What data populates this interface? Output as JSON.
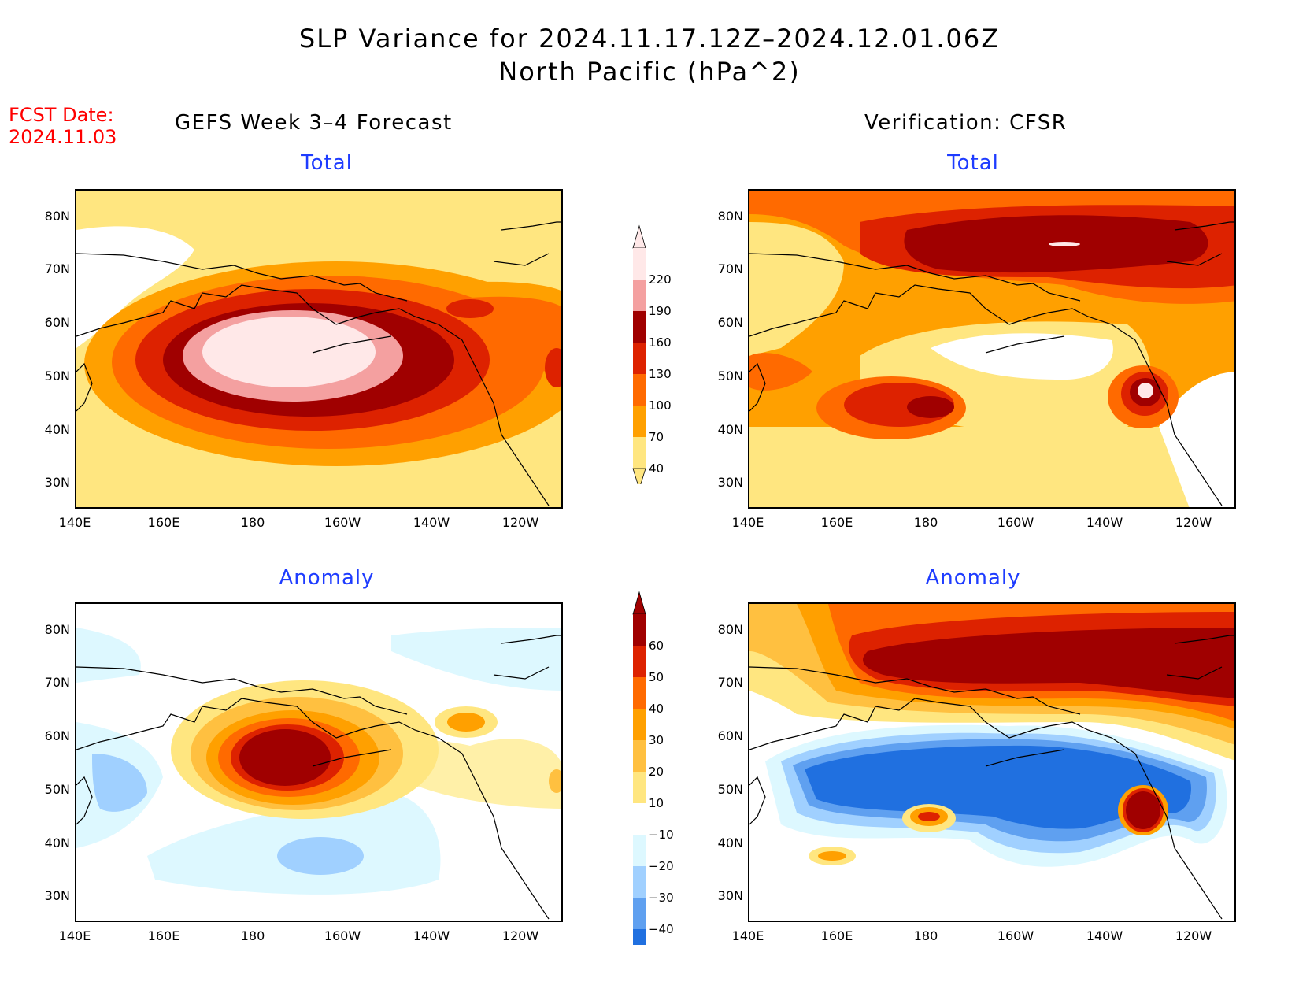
{
  "title": {
    "line1": "SLP Variance for 2024.11.17.12Z–2024.12.01.06Z",
    "line2": "North Pacific (hPa^2)"
  },
  "fcst_date": {
    "label": "FCST Date:",
    "value": "2024.11.03"
  },
  "headers": {
    "left": "GEFS Week 3–4 Forecast",
    "right": "Verification: CFSR"
  },
  "panels": {
    "top_left": {
      "subtitle": "Total"
    },
    "top_right": {
      "subtitle": "Total"
    },
    "bottom_left": {
      "subtitle": "Anomaly"
    },
    "bottom_right": {
      "subtitle": "Anomaly"
    }
  },
  "axes": {
    "lat_labels": [
      "80N",
      "70N",
      "60N",
      "50N",
      "40N",
      "30N"
    ],
    "lon_labels": [
      "140E",
      "160E",
      "180",
      "160W",
      "140W",
      "120W"
    ]
  },
  "colorbar_total": {
    "levels": [
      "220",
      "190",
      "160",
      "130",
      "100",
      "70",
      "40"
    ],
    "colors": [
      "#ffe8e8",
      "#f4a0a0",
      "#a00000",
      "#dd2200",
      "#ff6a00",
      "#ffa000",
      "#ffe680"
    ]
  },
  "colorbar_anomaly": {
    "levels": [
      "60",
      "50",
      "40",
      "30",
      "20",
      "10",
      "−10",
      "−20",
      "−30",
      "−40"
    ],
    "colors": [
      "#a00000",
      "#dd2200",
      "#ff6a00",
      "#ffa000",
      "#ffc040",
      "#ffe680",
      "#ffffff",
      "#ddf8ff",
      "#a0d0ff",
      "#5fa0f0",
      "#2070e0"
    ]
  }
}
